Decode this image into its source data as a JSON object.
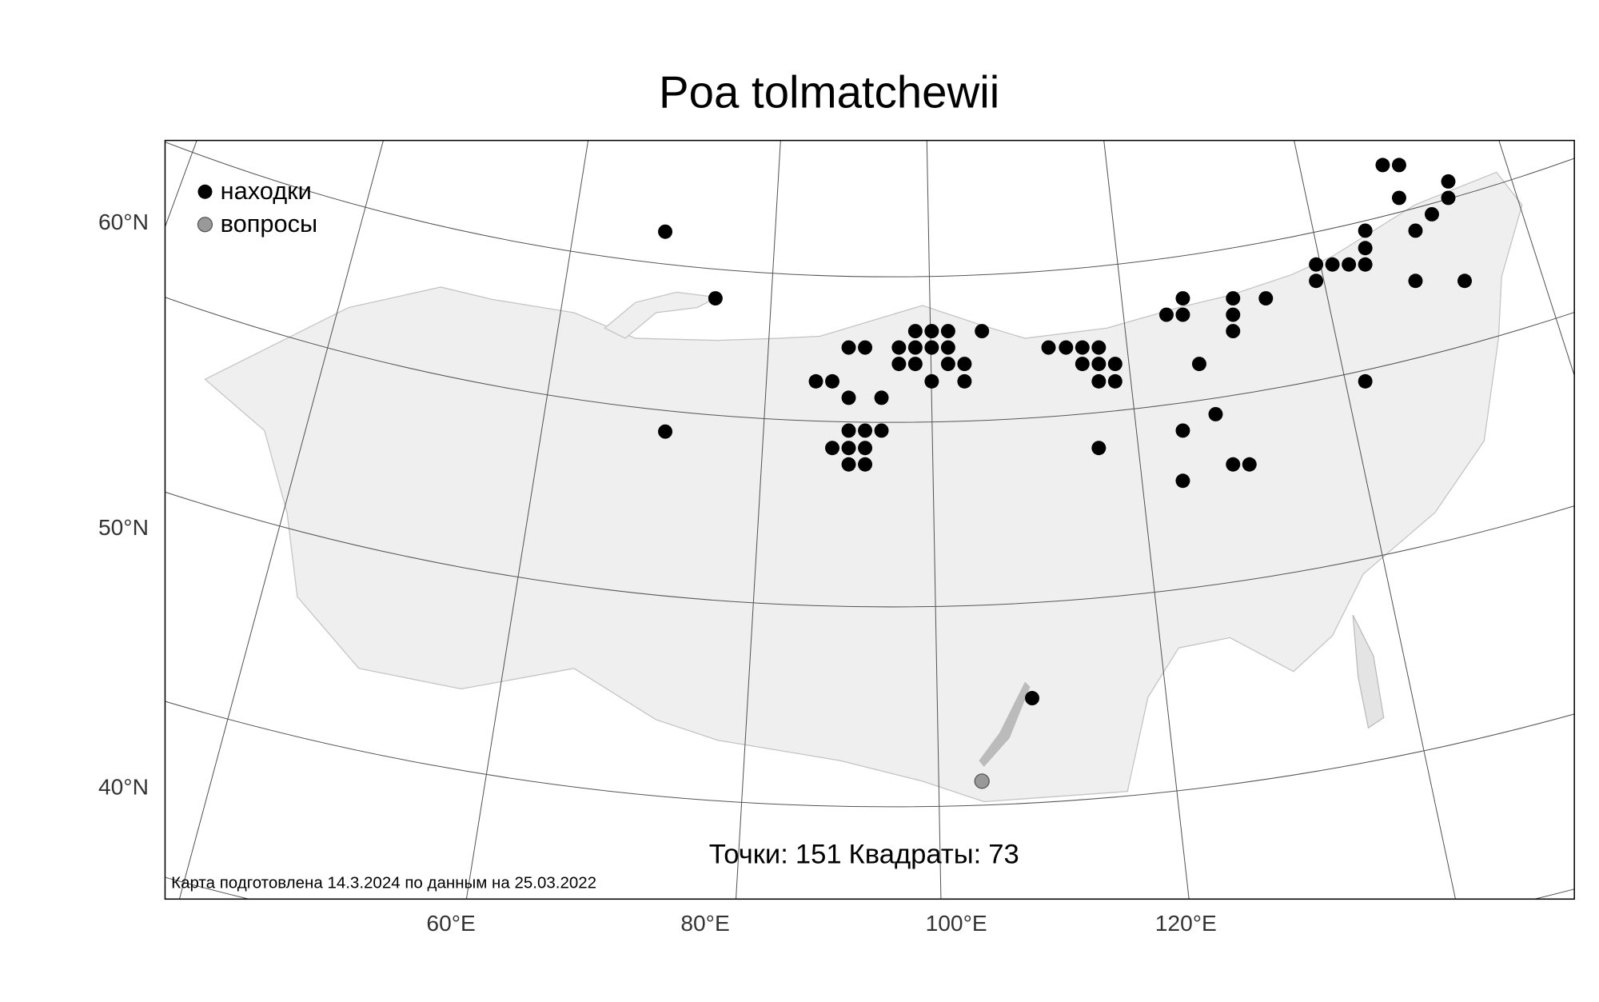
{
  "title": "Poa tolmatchewii",
  "legend": {
    "found": "находки",
    "questionable": "вопросы"
  },
  "lat_labels": [
    "60°N",
    "50°N",
    "40°N"
  ],
  "lon_labels": [
    "60°E",
    "80°E",
    "100°E",
    "120°E"
  ],
  "stats": {
    "points_label": "Точки:",
    "points": 151,
    "squares_label": "Квадраты:",
    "squares": 73
  },
  "footnote": "Карта подготовлена 14.3.2024 по данным на 25.03.2022"
}
